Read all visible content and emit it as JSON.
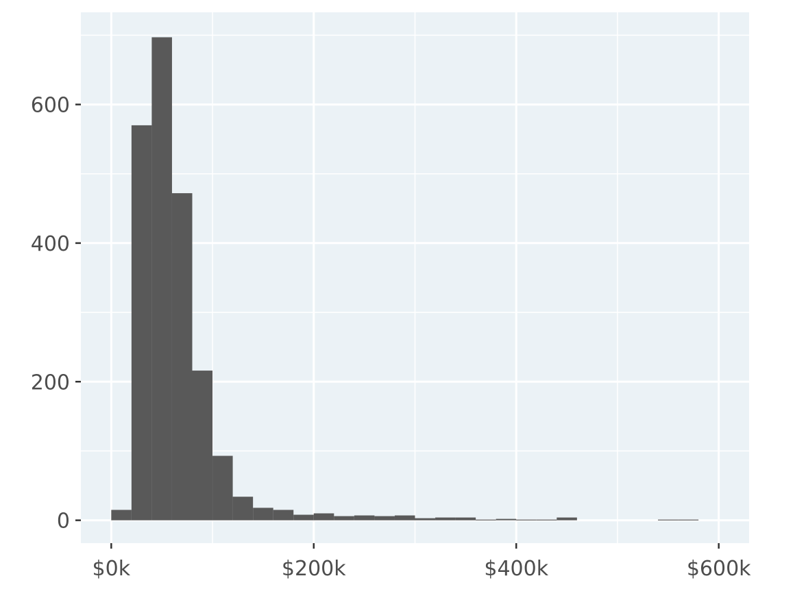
{
  "chart_data": {
    "type": "bar",
    "subtype": "histogram",
    "title": "",
    "xlabel": "",
    "ylabel": "",
    "bin_width": 20000,
    "bins": [
      {
        "x0": 0,
        "x1": 20000,
        "count": 15
      },
      {
        "x0": 20000,
        "x1": 40000,
        "count": 570
      },
      {
        "x0": 40000,
        "x1": 60000,
        "count": 697
      },
      {
        "x0": 60000,
        "x1": 80000,
        "count": 472
      },
      {
        "x0": 80000,
        "x1": 100000,
        "count": 216
      },
      {
        "x0": 100000,
        "x1": 120000,
        "count": 93
      },
      {
        "x0": 120000,
        "x1": 140000,
        "count": 34
      },
      {
        "x0": 140000,
        "x1": 160000,
        "count": 18
      },
      {
        "x0": 160000,
        "x1": 180000,
        "count": 15
      },
      {
        "x0": 180000,
        "x1": 200000,
        "count": 8
      },
      {
        "x0": 200000,
        "x1": 220000,
        "count": 10
      },
      {
        "x0": 220000,
        "x1": 240000,
        "count": 6
      },
      {
        "x0": 240000,
        "x1": 260000,
        "count": 7
      },
      {
        "x0": 260000,
        "x1": 280000,
        "count": 6
      },
      {
        "x0": 280000,
        "x1": 300000,
        "count": 7
      },
      {
        "x0": 300000,
        "x1": 320000,
        "count": 3
      },
      {
        "x0": 320000,
        "x1": 340000,
        "count": 4
      },
      {
        "x0": 340000,
        "x1": 360000,
        "count": 4
      },
      {
        "x0": 360000,
        "x1": 380000,
        "count": 1
      },
      {
        "x0": 380000,
        "x1": 400000,
        "count": 2
      },
      {
        "x0": 400000,
        "x1": 420000,
        "count": 1
      },
      {
        "x0": 420000,
        "x1": 440000,
        "count": 1
      },
      {
        "x0": 440000,
        "x1": 460000,
        "count": 4
      },
      {
        "x0": 460000,
        "x1": 480000,
        "count": 0
      },
      {
        "x0": 480000,
        "x1": 500000,
        "count": 0
      },
      {
        "x0": 500000,
        "x1": 520000,
        "count": 0
      },
      {
        "x0": 520000,
        "x1": 540000,
        "count": 0
      },
      {
        "x0": 540000,
        "x1": 560000,
        "count": 1
      },
      {
        "x0": 560000,
        "x1": 580000,
        "count": 1
      }
    ],
    "xlim": [
      -30000,
      630000
    ],
    "ylim": [
      -33,
      733
    ],
    "x_ticks": [
      {
        "value": 0,
        "label": "$0k"
      },
      {
        "value": 200000,
        "label": "$200k"
      },
      {
        "value": 400000,
        "label": "$400k"
      },
      {
        "value": 600000,
        "label": "$600k"
      }
    ],
    "x_minor_ticks": [
      100000,
      300000,
      500000
    ],
    "y_ticks": [
      {
        "value": 0,
        "label": "0"
      },
      {
        "value": 200,
        "label": "200"
      },
      {
        "value": 400,
        "label": "400"
      },
      {
        "value": 600,
        "label": "600"
      }
    ],
    "y_minor_ticks": [
      100,
      300,
      500,
      700
    ],
    "grid": true,
    "colors": {
      "panel_background": "#ebf2f6",
      "grid": "#ffffff",
      "bar_fill": "#595959",
      "tick_text": "#4d4d4d",
      "tick_mark": "#333333"
    }
  }
}
